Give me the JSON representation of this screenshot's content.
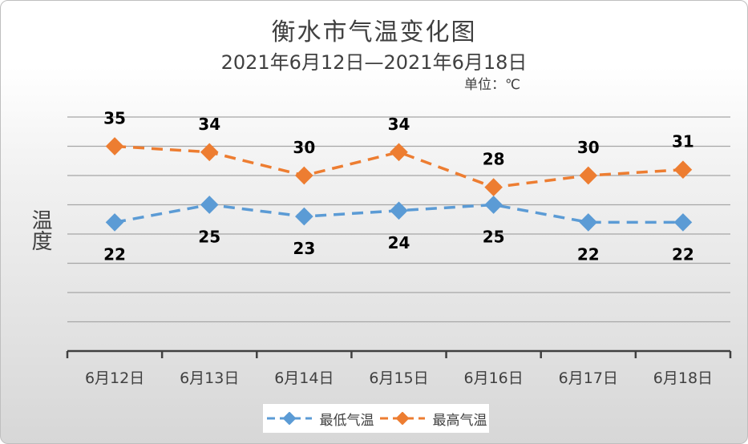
{
  "chart_data": {
    "type": "line",
    "title": "衡水市气温变化图",
    "subtitle": "2021年6月12日—2021年6月18日",
    "unit": "单位：℃",
    "ylabel": "温度",
    "xlabel": "",
    "categories": [
      "6月12日",
      "6月13日",
      "6月14日",
      "6月15日",
      "6月16日",
      "6月17日",
      "6月18日"
    ],
    "series": [
      {
        "name": "最低气温",
        "values": [
          22,
          25,
          23,
          24,
          25,
          22,
          22
        ],
        "color": "#5b9bd5",
        "label_position": "below"
      },
      {
        "name": "最高气温",
        "values": [
          35,
          34,
          30,
          34,
          28,
          30,
          31
        ],
        "color": "#ed7d31",
        "label_position": "above"
      }
    ],
    "ylim": [
      0,
      40
    ],
    "grid": true,
    "legend_position": "bottom",
    "line_style": "dashed",
    "marker": "diamond"
  }
}
